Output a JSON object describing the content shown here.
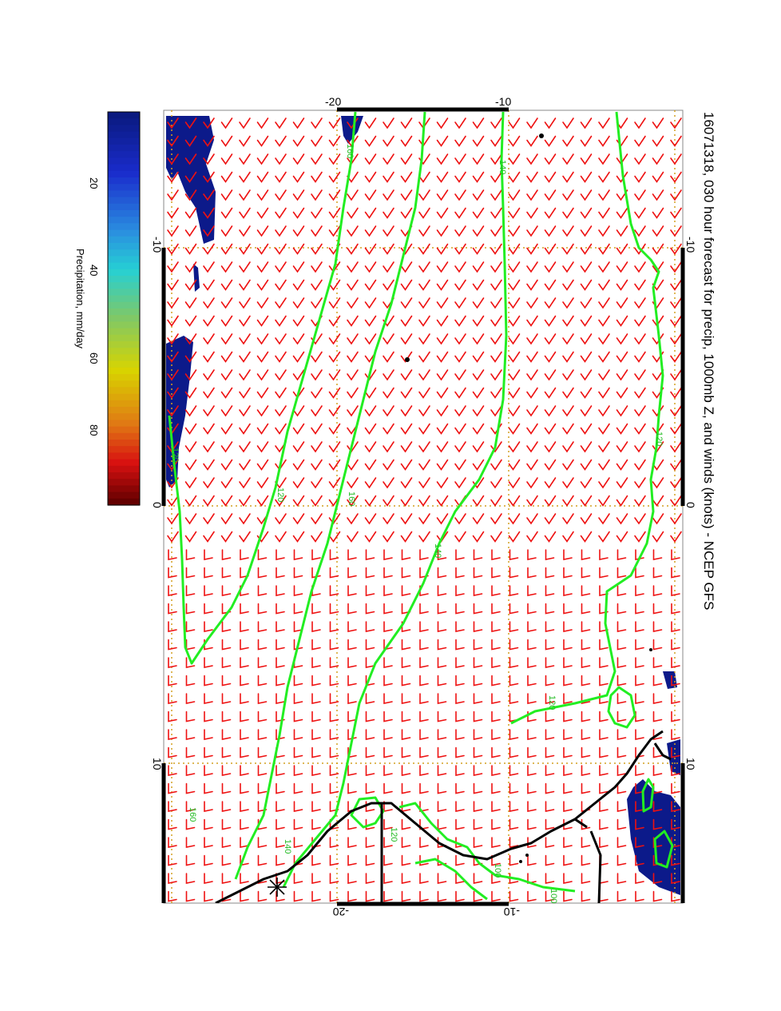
{
  "title": "16071318, 030 hour forecast for precip, 1000mb Z, and winds (knots) - NCEP GFS",
  "colorbar": {
    "label": "Precipitation, mm/day",
    "ticks": [
      "20",
      "40",
      "60",
      "80"
    ],
    "colors": [
      "#ffffff",
      "#1a2ccc",
      "#2ca8e6",
      "#26d4d4",
      "#7cc86a",
      "#d8d400",
      "#e07c14",
      "#e01010",
      "#6a0000"
    ]
  },
  "map": {
    "lon_ticks": [
      "-10",
      "0",
      "10"
    ],
    "lat_ticks_top": [
      "-20",
      "-10"
    ],
    "lat_ticks_bottom": [
      "-20",
      "-10"
    ],
    "contour_labels": [
      "120",
      "140",
      "160",
      "120",
      "140",
      "160",
      "120",
      "140",
      "120",
      "160",
      "120",
      "100",
      "100",
      "140",
      "160"
    ],
    "colors": {
      "contour": "#22ee22",
      "wind_barb": "#ee1111",
      "coast": "#000000",
      "grid": "#d4a020",
      "precip": "#0c1a8a"
    },
    "layers": [
      "1000mb height contours",
      "wind barbs (knots)",
      "precipitation shading",
      "coastline"
    ]
  }
}
